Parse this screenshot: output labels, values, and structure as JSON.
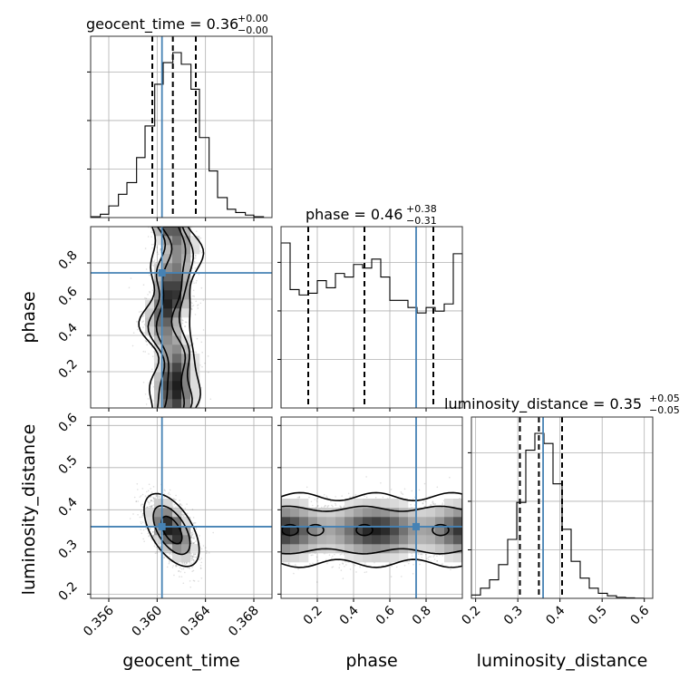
{
  "chart_data": {
    "type": "corner",
    "parameters": [
      "geocent_time",
      "phase",
      "luminosity_distance"
    ],
    "injection": {
      "geocent_time": 0.3604,
      "phase": 0.745,
      "luminosity_distance": 0.36
    },
    "titles": [
      {
        "name": "geocent_time = 0.36",
        "sup": "+0.00",
        "sub": "−0.00"
      },
      {
        "name": "phase = 0.46",
        "sup": "+0.38",
        "sub": "−0.31"
      },
      {
        "name": "luminosity_distance = 0.35",
        "sup": "+0.05",
        "sub": "−0.05"
      }
    ],
    "axes": {
      "geocent_time": {
        "label": "geocent_time",
        "range": [
          0.3545,
          0.3695
        ],
        "ticks": [
          0.356,
          0.36,
          0.364,
          0.368
        ],
        "tick_labels": [
          "0.356",
          "0.360",
          "0.364",
          "0.368"
        ]
      },
      "phase": {
        "label": "phase",
        "range": [
          0.0,
          1.0
        ],
        "ticks": [
          0.2,
          0.4,
          0.6,
          0.8
        ],
        "tick_labels": [
          "0.2",
          "0.4",
          "0.6",
          "0.8"
        ]
      },
      "luminosity_distance": {
        "label": "luminosity_distance",
        "range": [
          0.19,
          0.62
        ],
        "ticks": [
          0.2,
          0.3,
          0.4,
          0.5,
          0.6
        ],
        "tick_labels": [
          "0.2",
          "0.3",
          "0.4",
          "0.5",
          "0.6"
        ]
      }
    },
    "histograms": {
      "geocent_time": {
        "bin_edges": [
          0.3545,
          0.3553,
          0.356,
          0.3568,
          0.3575,
          0.3583,
          0.359,
          0.3598,
          0.3605,
          0.3613,
          0.362,
          0.3628,
          0.3635,
          0.3643,
          0.365,
          0.3658,
          0.3665,
          0.3673,
          0.368,
          0.3688,
          0.3695
        ],
        "counts": [
          0.005,
          0.02,
          0.07,
          0.14,
          0.21,
          0.36,
          0.55,
          0.8,
          0.93,
          0.99,
          0.92,
          0.77,
          0.48,
          0.28,
          0.12,
          0.05,
          0.03,
          0.015,
          0.005,
          0.0
        ],
        "quantiles": [
          0.3596,
          0.3613,
          0.3632
        ]
      },
      "phase": {
        "bin_edges": [
          0.0,
          0.05,
          0.1,
          0.15,
          0.2,
          0.25,
          0.3,
          0.35,
          0.4,
          0.45,
          0.5,
          0.55,
          0.6,
          0.65,
          0.7,
          0.75,
          0.8,
          0.85,
          0.9,
          0.95,
          1.0
        ],
        "counts": [
          0.92,
          0.66,
          0.63,
          0.64,
          0.71,
          0.67,
          0.75,
          0.73,
          0.8,
          0.78,
          0.83,
          0.73,
          0.6,
          0.6,
          0.56,
          0.53,
          0.56,
          0.54,
          0.58,
          0.86
        ],
        "quantiles": [
          0.15,
          0.46,
          0.84
        ]
      },
      "luminosity_distance": {
        "bin_edges": [
          0.19,
          0.2115,
          0.233,
          0.2545,
          0.276,
          0.2975,
          0.319,
          0.3405,
          0.362,
          0.3835,
          0.405,
          0.4265,
          0.448,
          0.4695,
          0.491,
          0.5125,
          0.534,
          0.5555,
          0.577,
          0.5985,
          0.62
        ],
        "counts": [
          0.02,
          0.06,
          0.11,
          0.2,
          0.35,
          0.57,
          0.88,
          0.98,
          0.92,
          0.68,
          0.41,
          0.22,
          0.12,
          0.06,
          0.03,
          0.015,
          0.006,
          0.003,
          0.001,
          0.0
        ],
        "quantiles": [
          0.305,
          0.35,
          0.405
        ]
      }
    },
    "pairs": [
      {
        "x": "geocent_time",
        "y": "phase",
        "x_center": 0.3612,
        "x_sigma": 0.00085,
        "y_shape": "uniform",
        "contour_levels": 3
      },
      {
        "x": "geocent_time",
        "y": "luminosity_distance",
        "x_center": 0.3612,
        "y_center": 0.352,
        "x_sigma": 0.00095,
        "y_sigma": 0.036,
        "correlation": -0.55,
        "contour_levels": 3
      },
      {
        "x": "phase",
        "y": "luminosity_distance",
        "y_center": 0.352,
        "y_sigma": 0.036,
        "x_shape": "uniform",
        "contour_levels": 3
      }
    ],
    "grid": true
  }
}
